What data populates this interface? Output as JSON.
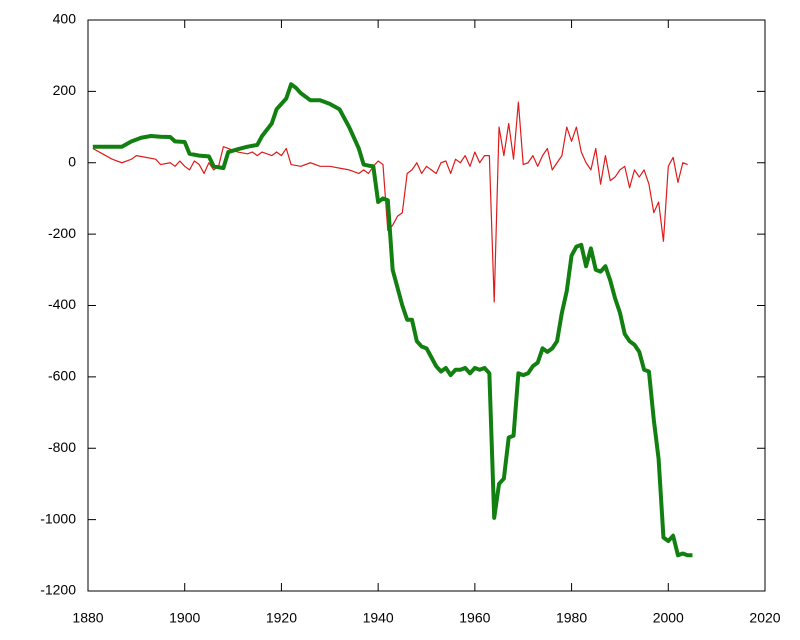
{
  "chart_data": {
    "type": "line",
    "xlim": [
      1880,
      2020
    ],
    "xticks": [
      1880,
      1900,
      1920,
      1940,
      1960,
      1980,
      2000,
      2020
    ],
    "ylim": [
      -1200,
      400
    ],
    "yticks": [
      -1200,
      -1000,
      -800,
      -600,
      -400,
      -200,
      0,
      200,
      400
    ],
    "grid": false,
    "series": [
      {
        "color": "#dd1c1c",
        "width": 1.2,
        "x": [
          1881,
          1883,
          1885,
          1887,
          1889,
          1890,
          1892,
          1894,
          1895,
          1897,
          1898,
          1899,
          1900,
          1901,
          1902,
          1903,
          1904,
          1905,
          1906,
          1907,
          1908,
          1909,
          1911,
          1913,
          1914,
          1915,
          1916,
          1917,
          1918,
          1919,
          1920,
          1921,
          1922,
          1924,
          1926,
          1928,
          1930,
          1932,
          1934,
          1936,
          1937,
          1938,
          1939,
          1940,
          1941,
          1942,
          1943,
          1944,
          1945,
          1946,
          1947,
          1948,
          1949,
          1950,
          1951,
          1952,
          1953,
          1954,
          1955,
          1956,
          1957,
          1958,
          1959,
          1960,
          1961,
          1962,
          1963,
          1964,
          1965,
          1966,
          1967,
          1968,
          1969,
          1970,
          1971,
          1972,
          1973,
          1974,
          1975,
          1976,
          1977,
          1978,
          1979,
          1980,
          1981,
          1982,
          1983,
          1984,
          1985,
          1986,
          1987,
          1988,
          1989,
          1990,
          1991,
          1992,
          1993,
          1994,
          1995,
          1996,
          1997,
          1998,
          1999,
          2000,
          2001,
          2002,
          2003,
          2004
        ],
        "values": [
          40,
          25,
          10,
          0,
          10,
          20,
          15,
          10,
          -5,
          0,
          -10,
          5,
          -10,
          -20,
          5,
          -5,
          -30,
          0,
          -20,
          -10,
          45,
          40,
          30,
          25,
          30,
          20,
          30,
          25,
          20,
          30,
          20,
          40,
          -5,
          -10,
          0,
          -10,
          -10,
          -15,
          -20,
          -30,
          -20,
          -30,
          -10,
          5,
          -5,
          -190,
          -175,
          -150,
          -140,
          -30,
          -20,
          0,
          -30,
          -10,
          -20,
          -30,
          0,
          5,
          -30,
          10,
          0,
          20,
          -10,
          30,
          0,
          20,
          20,
          -390,
          100,
          20,
          110,
          10,
          170,
          -5,
          0,
          20,
          -10,
          20,
          40,
          -20,
          0,
          20,
          100,
          60,
          100,
          30,
          0,
          -20,
          40,
          -60,
          20,
          -50,
          -40,
          -20,
          -10,
          -70,
          -20,
          -40,
          -20,
          -60,
          -140,
          -110,
          -220,
          -10,
          15,
          -55,
          0,
          -5
        ]
      },
      {
        "color": "#118011",
        "width": 4,
        "x": [
          1881,
          1884,
          1887,
          1889,
          1891,
          1893,
          1895,
          1897,
          1898,
          1900,
          1901,
          1903,
          1905,
          1906,
          1908,
          1909,
          1911,
          1913,
          1915,
          1916,
          1918,
          1919,
          1921,
          1922,
          1923,
          1924,
          1926,
          1928,
          1930,
          1932,
          1934,
          1936,
          1937,
          1938,
          1939,
          1940,
          1941,
          1942,
          1943,
          1944,
          1945,
          1946,
          1947,
          1948,
          1949,
          1950,
          1951,
          1952,
          1953,
          1954,
          1955,
          1956,
          1957,
          1958,
          1959,
          1960,
          1961,
          1962,
          1963,
          1964,
          1965,
          1966,
          1967,
          1968,
          1969,
          1970,
          1971,
          1972,
          1973,
          1974,
          1975,
          1976,
          1977,
          1978,
          1979,
          1980,
          1981,
          1982,
          1983,
          1984,
          1985,
          1986,
          1987,
          1988,
          1989,
          1990,
          1991,
          1992,
          1993,
          1994,
          1995,
          1996,
          1997,
          1998,
          1999,
          2000,
          2001,
          2002,
          2003,
          2004,
          2005
        ],
        "values": [
          45,
          45,
          45,
          60,
          70,
          75,
          73,
          72,
          60,
          58,
          25,
          20,
          18,
          -10,
          -15,
          30,
          38,
          45,
          50,
          75,
          110,
          150,
          180,
          220,
          210,
          195,
          175,
          175,
          165,
          150,
          100,
          40,
          -5,
          -8,
          -10,
          -110,
          -100,
          -105,
          -300,
          -350,
          -400,
          -440,
          -440,
          -500,
          -515,
          -520,
          -545,
          -570,
          -585,
          -575,
          -595,
          -580,
          -580,
          -575,
          -590,
          -575,
          -580,
          -575,
          -590,
          -995,
          -900,
          -885,
          -770,
          -765,
          -590,
          -595,
          -590,
          -570,
          -560,
          -520,
          -530,
          -520,
          -500,
          -420,
          -360,
          -260,
          -235,
          -230,
          -290,
          -240,
          -300,
          -305,
          -290,
          -330,
          -380,
          -420,
          -480,
          -500,
          -510,
          -530,
          -580,
          -585,
          -720,
          -830,
          -1050,
          -1060,
          -1045,
          -1100,
          -1095,
          -1100,
          -1100
        ]
      }
    ]
  }
}
